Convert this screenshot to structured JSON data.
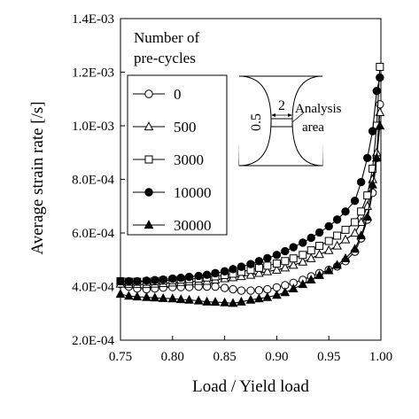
{
  "chart_data": {
    "type": "line",
    "title": "",
    "xlabel": "Load / Yield load",
    "ylabel": "Average strain rate [/s]",
    "xlim": [
      0.75,
      1.0
    ],
    "ylim": [
      0.0002,
      0.0014
    ],
    "x_ticks": [
      0.75,
      0.8,
      0.85,
      0.9,
      0.95,
      1.0
    ],
    "x_tick_labels": [
      "0.75",
      "0.80",
      "0.85",
      "0.90",
      "0.95",
      "1.00"
    ],
    "y_ticks": [
      0.0002,
      0.0004,
      0.0006,
      0.0008,
      0.001,
      0.0012,
      0.0014
    ],
    "y_tick_labels": [
      "2.0E-04",
      "4.0E-04",
      "6.0E-04",
      "8.0E-04",
      "1.0E-03",
      "1.2E-03",
      "1.4E-03"
    ],
    "grid": false,
    "legend": {
      "title": [
        "Number of",
        "pre-cycles"
      ],
      "placement": "top-left"
    },
    "inset": {
      "dim_width": "2",
      "dim_height": "0.5",
      "label": [
        "Analysis",
        "area"
      ]
    },
    "series": [
      {
        "name": "0",
        "marker": "circle-open",
        "x": [
          0.75,
          0.758,
          0.766,
          0.775,
          0.783,
          0.791,
          0.8,
          0.808,
          0.816,
          0.825,
          0.833,
          0.841,
          0.85,
          0.858,
          0.866,
          0.875,
          0.883,
          0.891,
          0.9,
          0.908,
          0.916,
          0.925,
          0.933,
          0.941,
          0.95,
          0.958,
          0.966,
          0.975,
          0.981,
          0.987,
          0.992,
          0.996,
          0.999
        ],
        "y": [
          0.00041,
          0.0004,
          0.000393,
          0.00039,
          0.000393,
          0.000396,
          0.000398,
          0.000398,
          0.000398,
          0.0004,
          0.0004,
          0.0004,
          0.000395,
          0.00039,
          0.000385,
          0.000385,
          0.000386,
          0.00039,
          0.000397,
          0.000405,
          0.000414,
          0.000425,
          0.000438,
          0.00045,
          0.000462,
          0.000475,
          0.000495,
          0.00053,
          0.00058,
          0.00065,
          0.00075,
          0.00088,
          0.00108
        ]
      },
      {
        "name": "500",
        "marker": "triangle-open",
        "x": [
          0.75,
          0.758,
          0.766,
          0.775,
          0.783,
          0.791,
          0.8,
          0.808,
          0.816,
          0.825,
          0.833,
          0.841,
          0.85,
          0.858,
          0.866,
          0.875,
          0.883,
          0.891,
          0.9,
          0.908,
          0.916,
          0.925,
          0.933,
          0.941,
          0.95,
          0.958,
          0.966,
          0.975,
          0.981,
          0.987,
          0.992,
          0.996,
          0.999
        ],
        "y": [
          0.00041,
          0.000408,
          0.000408,
          0.000408,
          0.00041,
          0.000412,
          0.000414,
          0.000416,
          0.000418,
          0.00042,
          0.00042,
          0.000425,
          0.00043,
          0.000434,
          0.000438,
          0.000443,
          0.00045,
          0.000456,
          0.000462,
          0.00047,
          0.00048,
          0.000492,
          0.000505,
          0.00052,
          0.000535,
          0.000552,
          0.000575,
          0.0006,
          0.00064,
          0.0007,
          0.0008,
          0.0009,
          0.00105
        ]
      },
      {
        "name": "3000",
        "marker": "square-open",
        "x": [
          0.75,
          0.758,
          0.766,
          0.775,
          0.783,
          0.791,
          0.8,
          0.808,
          0.816,
          0.825,
          0.833,
          0.841,
          0.85,
          0.858,
          0.866,
          0.875,
          0.883,
          0.891,
          0.9,
          0.908,
          0.916,
          0.925,
          0.933,
          0.941,
          0.95,
          0.958,
          0.966,
          0.975,
          0.981,
          0.987,
          0.992,
          0.996,
          0.999
        ],
        "y": [
          0.00042,
          0.000418,
          0.000418,
          0.000418,
          0.00042,
          0.000422,
          0.000424,
          0.000426,
          0.000428,
          0.00043,
          0.000434,
          0.000438,
          0.000443,
          0.000448,
          0.000455,
          0.000462,
          0.00047,
          0.000478,
          0.000486,
          0.000495,
          0.000505,
          0.000518,
          0.000535,
          0.000552,
          0.00057,
          0.00059,
          0.000612,
          0.00064,
          0.00068,
          0.00074,
          0.00084,
          0.001,
          0.00122
        ]
      },
      {
        "name": "10000",
        "marker": "circle-filled",
        "x": [
          0.75,
          0.758,
          0.766,
          0.775,
          0.783,
          0.791,
          0.8,
          0.808,
          0.816,
          0.825,
          0.833,
          0.841,
          0.85,
          0.858,
          0.866,
          0.875,
          0.883,
          0.891,
          0.9,
          0.908,
          0.916,
          0.925,
          0.933,
          0.941,
          0.95,
          0.958,
          0.966,
          0.975,
          0.981,
          0.987,
          0.992,
          0.996,
          0.999
        ],
        "y": [
          0.00042,
          0.00042,
          0.00042,
          0.000422,
          0.000424,
          0.000426,
          0.00043,
          0.000433,
          0.000436,
          0.00044,
          0.000444,
          0.00045,
          0.000457,
          0.000465,
          0.000474,
          0.000484,
          0.000495,
          0.000506,
          0.000518,
          0.000532,
          0.000547,
          0.000564,
          0.000582,
          0.000602,
          0.000625,
          0.00065,
          0.00068,
          0.00072,
          0.00079,
          0.00088,
          0.00098,
          0.00113,
          0.00118
        ]
      },
      {
        "name": "30000",
        "marker": "triangle-filled",
        "x": [
          0.75,
          0.758,
          0.766,
          0.775,
          0.783,
          0.791,
          0.8,
          0.808,
          0.816,
          0.825,
          0.833,
          0.841,
          0.85,
          0.858,
          0.866,
          0.875,
          0.883,
          0.891,
          0.9,
          0.908,
          0.916,
          0.925,
          0.933,
          0.941,
          0.95,
          0.958,
          0.966,
          0.975,
          0.981,
          0.987,
          0.992,
          0.996,
          0.999
        ],
        "y": [
          0.000372,
          0.000365,
          0.000362,
          0.00036,
          0.000358,
          0.000356,
          0.000355,
          0.000352,
          0.00035,
          0.000347,
          0.000343,
          0.000342,
          0.00034,
          0.000338,
          0.000343,
          0.00035,
          0.000355,
          0.00036,
          0.000368,
          0.000378,
          0.000392,
          0.000408,
          0.000425,
          0.000442,
          0.00046,
          0.00048,
          0.000505,
          0.00054,
          0.00059,
          0.00066,
          0.00078,
          0.00088,
          0.001
        ]
      }
    ]
  }
}
